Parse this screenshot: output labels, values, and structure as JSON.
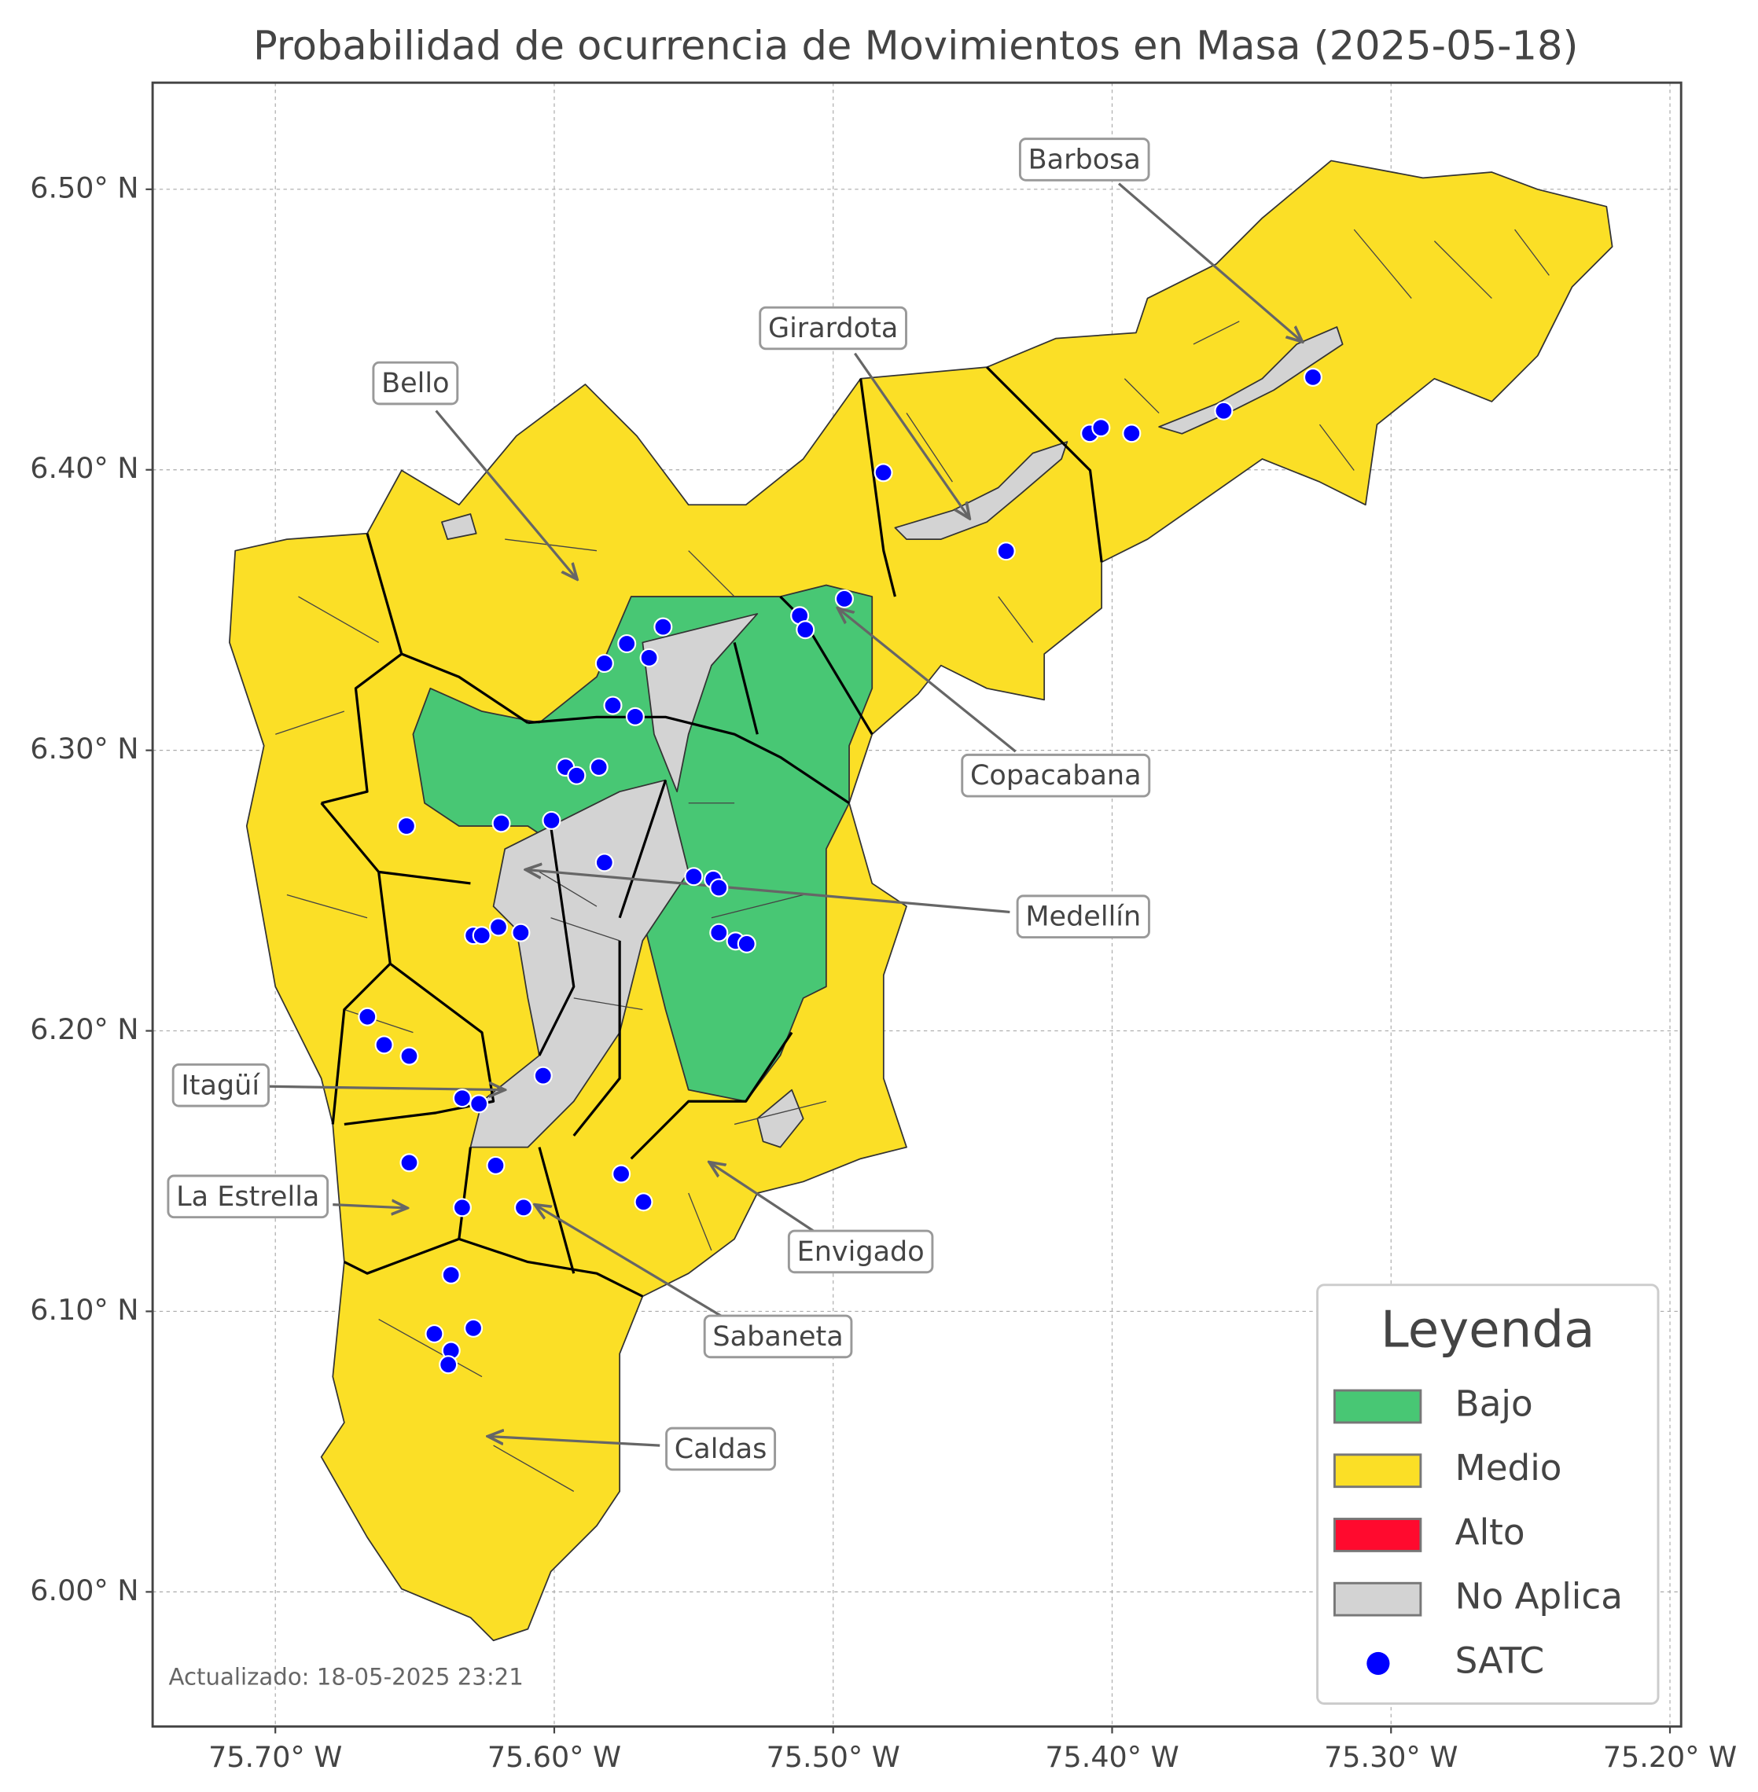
{
  "chart_data": {
    "type": "map",
    "title": "Probabilidad de ocurrencia de Movimientos en Masa (2025-05-18)",
    "xlim": [
      -75.744,
      -75.196
    ],
    "ylim": [
      5.952,
      6.538
    ],
    "xticks": [
      {
        "value": -75.7,
        "label": "75.70° W"
      },
      {
        "value": -75.6,
        "label": "75.60° W"
      },
      {
        "value": -75.5,
        "label": "75.50° W"
      },
      {
        "value": -75.4,
        "label": "75.40° W"
      },
      {
        "value": -75.3,
        "label": "75.30° W"
      },
      {
        "value": -75.2,
        "label": "75.20° W"
      }
    ],
    "yticks": [
      {
        "value": 6.0,
        "label": "6.00° N"
      },
      {
        "value": 6.1,
        "label": "6.10° N"
      },
      {
        "value": 6.2,
        "label": "6.20° N"
      },
      {
        "value": 6.3,
        "label": "6.30° N"
      },
      {
        "value": 6.4,
        "label": "6.40° N"
      },
      {
        "value": 6.5,
        "label": "6.50° N"
      }
    ],
    "grid": true,
    "legend": {
      "title": "Leyenda",
      "position": "lower right",
      "entries": [
        {
          "name": "Bajo",
          "color": "#48c774"
        },
        {
          "name": "Medio",
          "color": "#fbdf26"
        },
        {
          "name": "Alto",
          "color": "#ff0a2e"
        },
        {
          "name": "No Aplica",
          "color": "#d3d3d3"
        }
      ]
    },
    "series": [
      {
        "name": "SATC",
        "color": "#0000ff",
        "x": [
          -75.482,
          -75.438,
          -75.408,
          -75.404,
          -75.393,
          -75.36,
          -75.328,
          -75.496,
          -75.512,
          -75.51,
          -75.561,
          -75.574,
          -75.566,
          -75.582,
          -75.579,
          -75.571,
          -75.596,
          -75.592,
          -75.584,
          -75.653,
          -75.619,
          -75.601,
          -75.582,
          -75.55,
          -75.543,
          -75.541,
          -75.541,
          -75.535,
          -75.531,
          -75.629,
          -75.626,
          -75.62,
          -75.612,
          -75.667,
          -75.661,
          -75.652,
          -75.604,
          -75.633,
          -75.627,
          -75.652,
          -75.621,
          -75.576,
          -75.568,
          -75.633,
          -75.611,
          -75.637,
          -75.643,
          -75.629,
          -75.637,
          -75.638
        ],
        "y": [
          6.399,
          6.371,
          6.413,
          6.415,
          6.413,
          6.421,
          6.433,
          6.354,
          6.348,
          6.343,
          6.344,
          6.338,
          6.333,
          6.331,
          6.316,
          6.312,
          6.294,
          6.291,
          6.294,
          6.273,
          6.274,
          6.275,
          6.26,
          6.255,
          6.254,
          6.251,
          6.235,
          6.232,
          6.231,
          6.234,
          6.234,
          6.237,
          6.235,
          6.205,
          6.195,
          6.191,
          6.184,
          6.176,
          6.174,
          6.153,
          6.152,
          6.149,
          6.139,
          6.137,
          6.137,
          6.113,
          6.092,
          6.094,
          6.086,
          6.081
        ]
      }
    ],
    "annotations": [
      {
        "text": "Barbosa"
      },
      {
        "text": "Girardota"
      },
      {
        "text": "Bello"
      },
      {
        "text": "Copacabana"
      },
      {
        "text": "Medellín"
      },
      {
        "text": "Itagüí"
      },
      {
        "text": "La Estrella"
      },
      {
        "text": "Envigado"
      },
      {
        "text": "Sabaneta"
      },
      {
        "text": "Caldas"
      }
    ],
    "footnote": "Actualizado: 18-05-2025 23:21"
  }
}
